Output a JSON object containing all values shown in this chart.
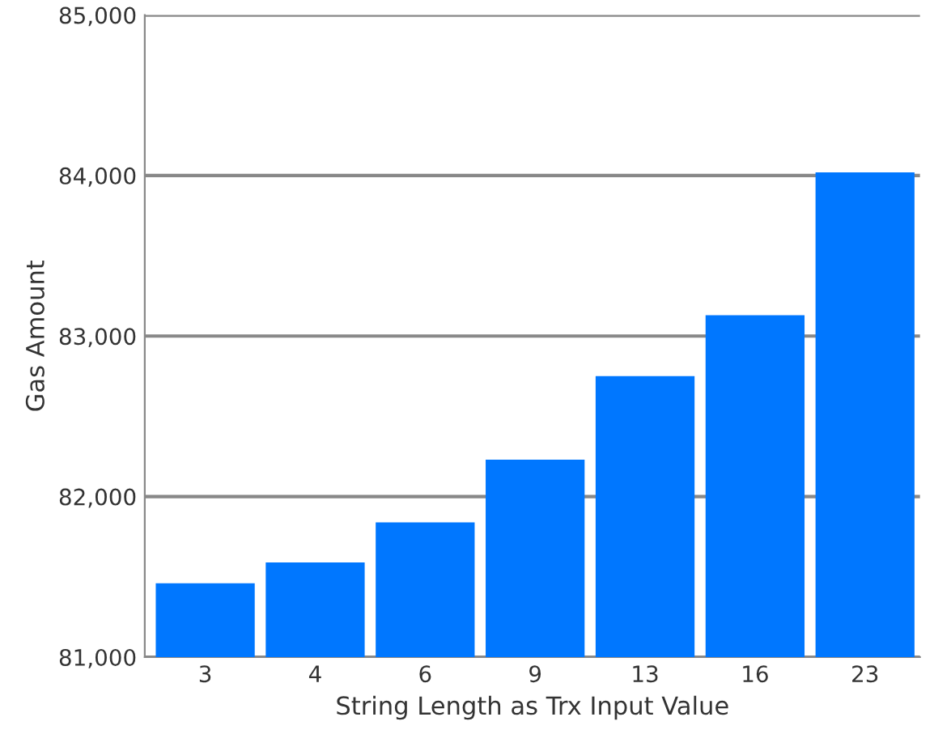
{
  "chart_data": {
    "type": "bar",
    "xlabel": "String Length as Trx Input Value",
    "ylabel": "Gas Amount",
    "categories": [
      "3",
      "4",
      "6",
      "9",
      "13",
      "16",
      "23"
    ],
    "values": [
      81460,
      81590,
      81840,
      82230,
      82750,
      83130,
      84020
    ],
    "color": "#0077ff",
    "ylim": [
      81000,
      85000
    ],
    "yticks": [
      {
        "value": 81000,
        "label": "81,000"
      },
      {
        "value": 82000,
        "label": "82,000"
      },
      {
        "value": 83000,
        "label": "83,000"
      },
      {
        "value": 84000,
        "label": "84,000"
      },
      {
        "value": 85000,
        "label": "85,000"
      }
    ],
    "grid": "y"
  }
}
